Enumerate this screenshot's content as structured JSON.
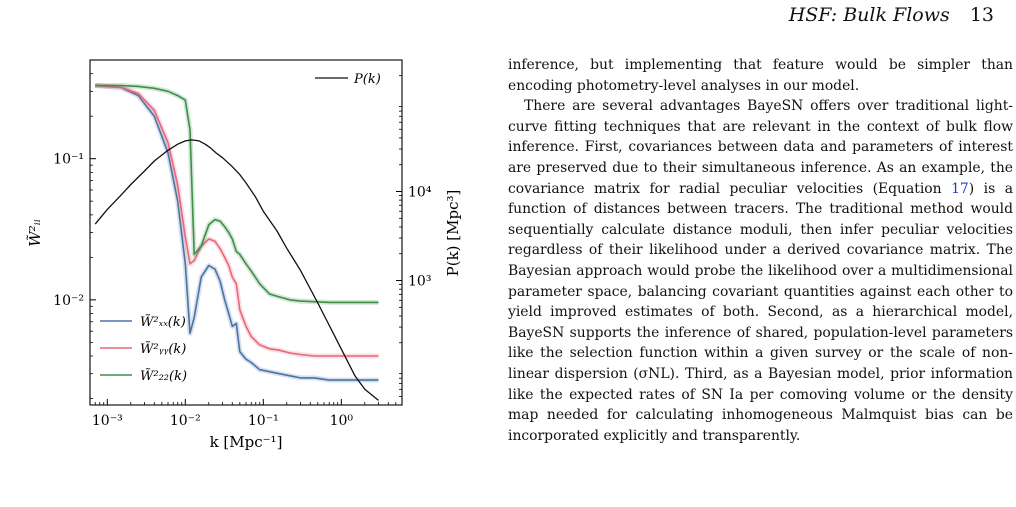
{
  "header": {
    "title": "HSF: Bulk Flows",
    "page_number": "13"
  },
  "figure": {
    "chart_data": {
      "type": "line",
      "xscale": "log",
      "xlim": [
        0.0006,
        6
      ],
      "ylim_left": [
        0.0018,
        0.5
      ],
      "ylim_right": [
        40,
        300000
      ],
      "xlabel": "k [Mpc⁻¹]",
      "ylabel_left": "W̃²ᵢᵢ",
      "ylabel_right": "P(k) [Mpc³]",
      "x_ticks": [
        "10⁻³",
        "10⁻²",
        "10⁻¹",
        "10⁰"
      ],
      "y_left_ticks": [
        "10⁻¹",
        "10⁻²"
      ],
      "y_right_ticks": [
        "10⁴",
        "10³"
      ],
      "legend": {
        "upper_right": "P(k)",
        "lower_left": [
          "W̃²ₓₓ(k)",
          "W̃²ᵧᵧ(k)",
          "W̃²₂₂(k)"
        ]
      },
      "series": [
        {
          "name": "W̃²ₓₓ(k)",
          "axis": "left",
          "color": "#4a73a8",
          "x": [
            0.0007,
            0.0015,
            0.0025,
            0.004,
            0.006,
            0.008,
            0.01,
            0.0115,
            0.013,
            0.016,
            0.02,
            0.024,
            0.028,
            0.032,
            0.036,
            0.04,
            0.045,
            0.05,
            0.06,
            0.07,
            0.09,
            0.12,
            0.16,
            0.22,
            0.3,
            0.45,
            0.7,
            1.0,
            1.5,
            2.0,
            3.0
          ],
          "y": [
            0.33,
            0.32,
            0.28,
            0.2,
            0.11,
            0.05,
            0.018,
            0.0058,
            0.0075,
            0.0145,
            0.0175,
            0.0165,
            0.0135,
            0.01,
            0.008,
            0.0065,
            0.0068,
            0.0043,
            0.0038,
            0.0036,
            0.0032,
            0.0031,
            0.003,
            0.0029,
            0.0028,
            0.0028,
            0.0027,
            0.0027,
            0.0027,
            0.0027,
            0.0027
          ]
        },
        {
          "name": "W̃²ᵧᵧ(k)",
          "axis": "left",
          "color": "#e8677a",
          "x": [
            0.0007,
            0.0015,
            0.0025,
            0.004,
            0.006,
            0.008,
            0.01,
            0.0115,
            0.013,
            0.016,
            0.02,
            0.024,
            0.028,
            0.032,
            0.036,
            0.04,
            0.045,
            0.05,
            0.06,
            0.07,
            0.09,
            0.12,
            0.16,
            0.22,
            0.3,
            0.45,
            0.7,
            1.0,
            1.5,
            2.0,
            3.0
          ],
          "y": [
            0.33,
            0.32,
            0.29,
            0.22,
            0.13,
            0.065,
            0.028,
            0.018,
            0.019,
            0.024,
            0.027,
            0.026,
            0.023,
            0.02,
            0.0175,
            0.0145,
            0.013,
            0.0085,
            0.0065,
            0.0055,
            0.0048,
            0.0045,
            0.0044,
            0.0042,
            0.0041,
            0.004,
            0.004,
            0.004,
            0.004,
            0.004,
            0.004
          ]
        },
        {
          "name": "W̃²₂₂(k)",
          "axis": "left",
          "color": "#3f8f49",
          "x": [
            0.0007,
            0.0015,
            0.0025,
            0.004,
            0.006,
            0.008,
            0.01,
            0.0115,
            0.013,
            0.016,
            0.02,
            0.024,
            0.028,
            0.032,
            0.036,
            0.04,
            0.045,
            0.05,
            0.06,
            0.07,
            0.09,
            0.12,
            0.16,
            0.22,
            0.3,
            0.45,
            0.7,
            1.0,
            1.5,
            2.0,
            3.0
          ],
          "y": [
            0.33,
            0.33,
            0.325,
            0.315,
            0.3,
            0.28,
            0.26,
            0.16,
            0.021,
            0.024,
            0.034,
            0.037,
            0.036,
            0.033,
            0.03,
            0.027,
            0.022,
            0.021,
            0.018,
            0.016,
            0.013,
            0.011,
            0.0105,
            0.01,
            0.0098,
            0.0097,
            0.0096,
            0.0096,
            0.0096,
            0.0096,
            0.0096
          ]
        },
        {
          "name": "P(k)",
          "axis": "right",
          "color": "#111111",
          "x": [
            0.0007,
            0.001,
            0.0015,
            0.002,
            0.003,
            0.004,
            0.006,
            0.008,
            0.01,
            0.012,
            0.015,
            0.018,
            0.021,
            0.025,
            0.03,
            0.04,
            0.05,
            0.06,
            0.08,
            0.1,
            0.15,
            0.2,
            0.3,
            0.5,
            0.8,
            1.0,
            1.5,
            2.0,
            3.0
          ],
          "y": [
            4300,
            6300,
            9100,
            12000,
            17000,
            22000,
            29000,
            34000,
            37000,
            38000,
            37000,
            34000,
            31000,
            27000,
            24000,
            19000,
            15500,
            12500,
            8600,
            6000,
            3600,
            2300,
            1300,
            560,
            250,
            170,
            85,
            60,
            45
          ]
        }
      ]
    }
  },
  "body_text": {
    "p1": "inference, but implementing that feature would be simpler than encoding photometry-level analyses in our model.",
    "p2_a": "There are several advantages BayeSN offers over traditional light-curve fitting techniques that are relevant in the context of bulk flow inference. First, covariances between data and parameters of interest are preserved due to their simultaneous inference. As an example, the covariance matrix for radial peculiar velocities (Equation ",
    "p2_ref": "17",
    "p2_b": ") is a function of distances between tracers. The traditional method would sequentially calculate distance moduli, then infer peculiar velocities regardless of their likelihood under a derived covariance matrix. The Bayesian approach would probe the likelihood over a multidimensional parameter space, balancing covariant quantities against each other to yield improved estimates of both. Second, as a hierarchical model, BayeSN supports the inference of shared, population-level parameters like the selection function within a given survey or the scale of non-linear dispersion (σNL). Third, as a Bayesian model, prior information like the expected rates of SN Ia per comoving volume or the density map needed for calculating inhomogeneous Malmquist bias can be incorporated explicitly and transparently."
  }
}
